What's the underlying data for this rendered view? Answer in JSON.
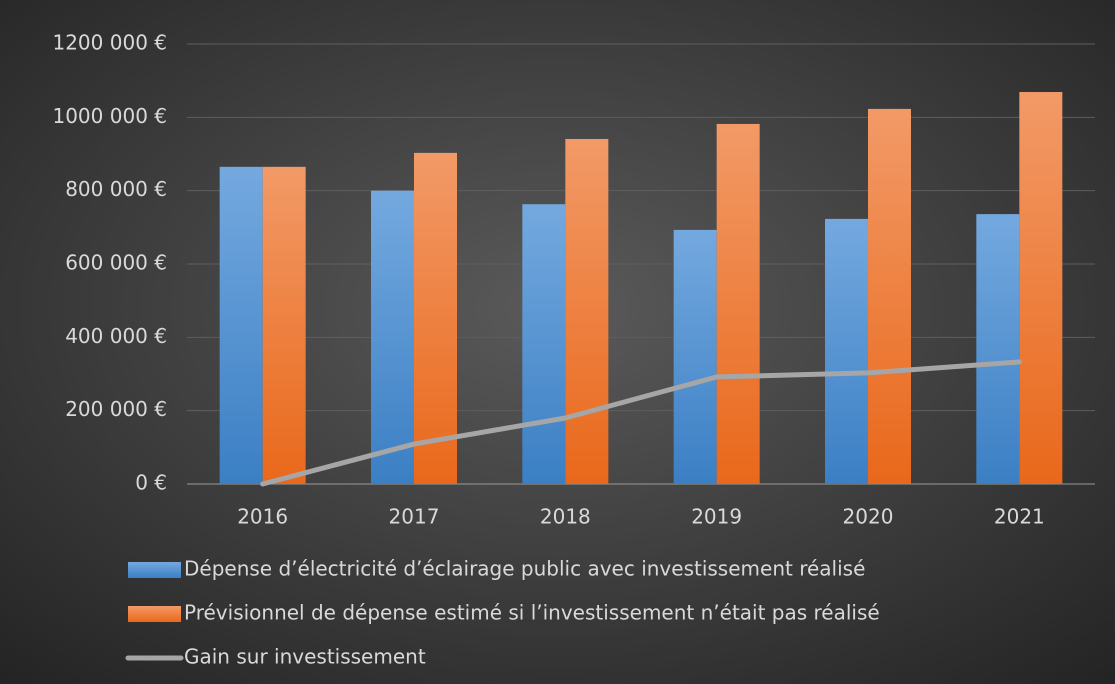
{
  "chart_data": {
    "type": "bar_line",
    "categories": [
      "2016",
      "2017",
      "2018",
      "2019",
      "2020",
      "2021"
    ],
    "series": [
      {
        "name": "Dépense d’électricité d’éclairage public avec investissement réalisé",
        "color": "#5b9bd5",
        "type": "bar",
        "values": [
          865000,
          800000,
          763000,
          693000,
          723000,
          736000
        ]
      },
      {
        "name": "Prévisionnel de dépense estimé si l’investissement n’était pas réalisé",
        "color": "#ed7d31",
        "type": "bar",
        "values": [
          865000,
          903000,
          941000,
          982000,
          1023000,
          1069000
        ]
      },
      {
        "name": "Gain sur investissement",
        "color": "#a6a6a6",
        "type": "line",
        "values": [
          0,
          109000,
          180000,
          292000,
          303000,
          333000
        ]
      }
    ],
    "ylim": [
      0,
      1200000
    ],
    "yticks": [
      {
        "value": 0,
        "label": "0 €"
      },
      {
        "value": 200000,
        "label": "200 000 €"
      },
      {
        "value": 400000,
        "label": "400 000 €"
      },
      {
        "value": 600000,
        "label": "600 000 €"
      },
      {
        "value": 800000,
        "label": "800 000 €"
      },
      {
        "value": 1000000,
        "label": "1000 000 €"
      },
      {
        "value": 1200000,
        "label": "1200 000 €"
      }
    ],
    "grid": true,
    "legend": "bottom"
  }
}
